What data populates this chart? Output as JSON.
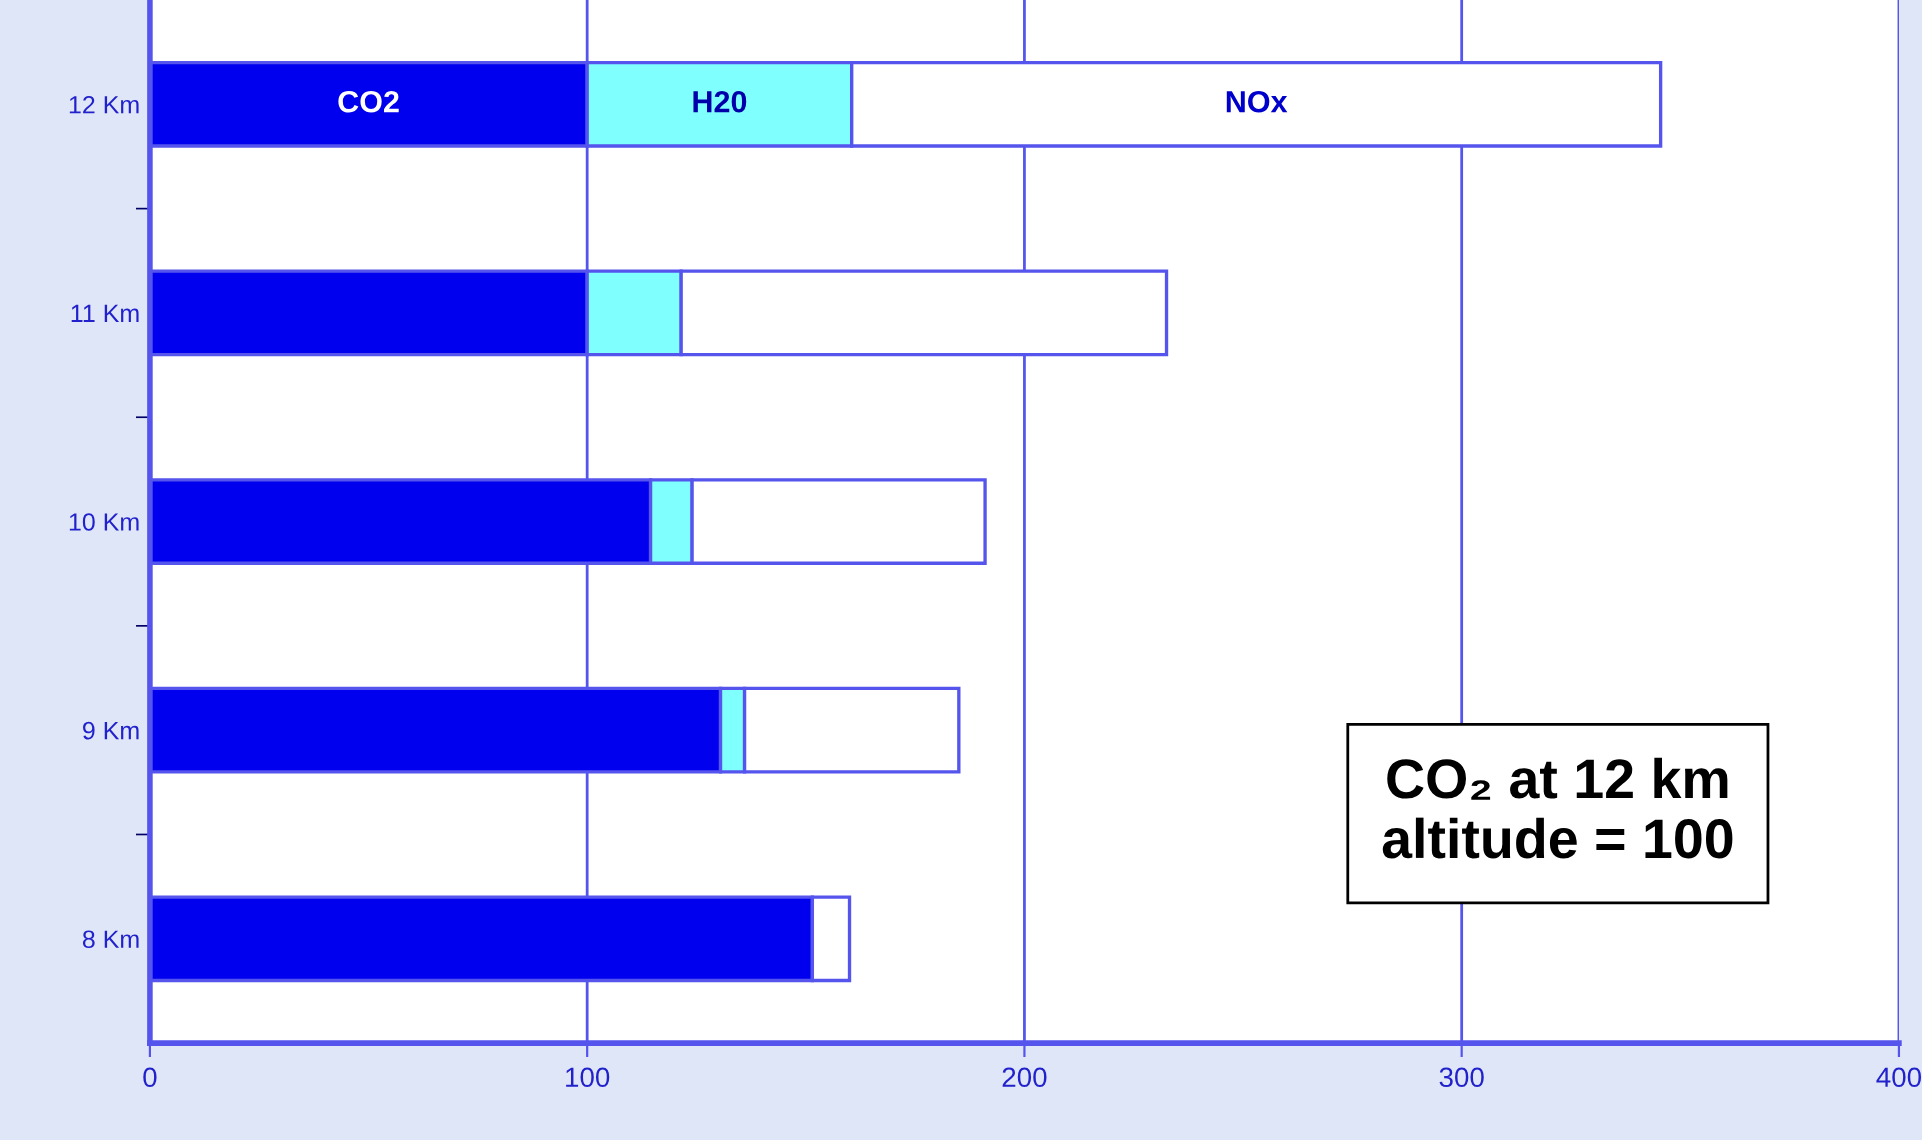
{
  "chart_data": {
    "type": "bar",
    "orientation": "horizontal",
    "stacked": true,
    "categories": [
      "12 Km",
      "11 Km",
      "10 Km",
      "9 Km",
      "8 Km"
    ],
    "series": [
      {
        "name": "CO2",
        "color": "#0000ee",
        "values": [
          100,
          100,
          114.5,
          130.5,
          151.5
        ]
      },
      {
        "name": "H20",
        "color": "#80ffff",
        "values": [
          60.5,
          21.5,
          9.5,
          5.5,
          null
        ]
      },
      {
        "name": "NOx",
        "color": "#ffffff",
        "values": [
          185,
          111,
          67,
          49,
          8.5
        ]
      }
    ],
    "xlim": [
      0,
      400
    ],
    "xticks": [
      0,
      100,
      200,
      300,
      400
    ],
    "grid": "x",
    "legend": false,
    "annotations": [
      "CO₂ at 12 km\naltitude = 100"
    ]
  }
}
